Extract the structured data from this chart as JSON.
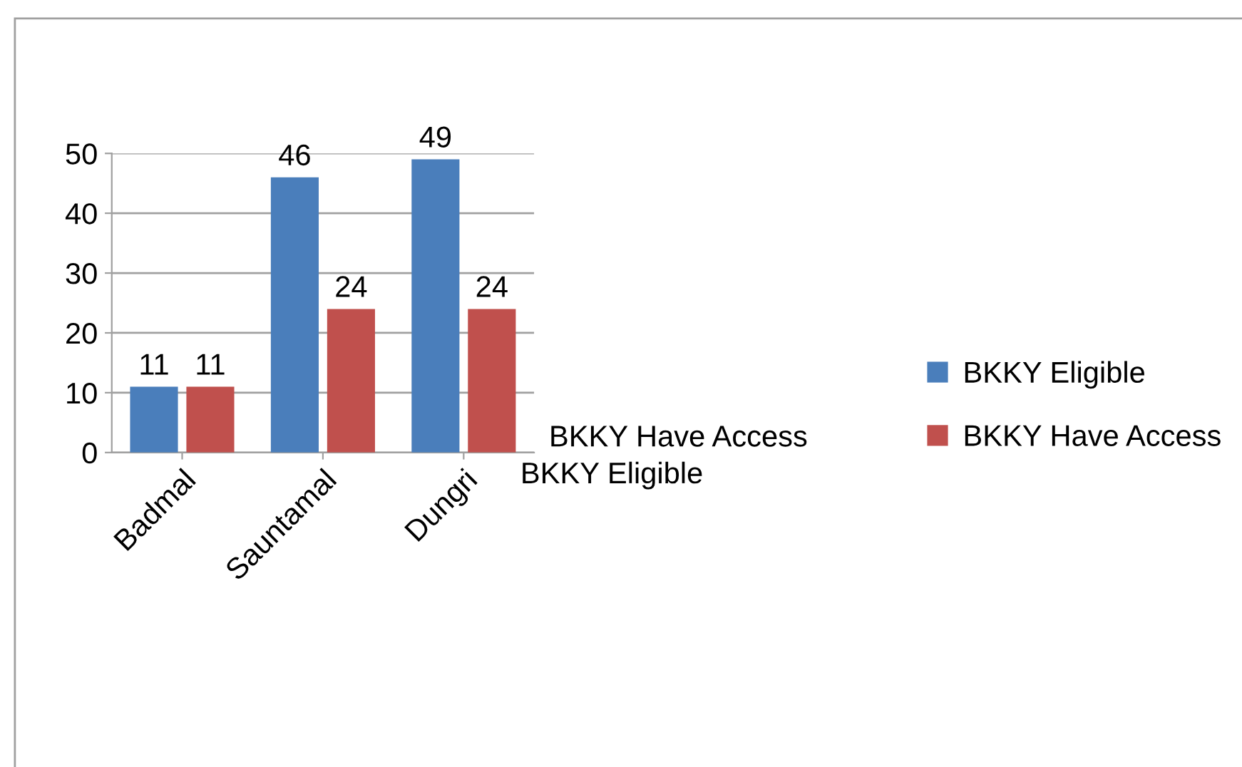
{
  "chart_data": {
    "type": "bar",
    "categories": [
      "Badmal",
      "Sauntamal",
      "Dungri"
    ],
    "series": [
      {
        "name": "BKKY Eligible",
        "color": "#4a7ebb",
        "values": [
          11,
          46,
          49
        ]
      },
      {
        "name": "BKKY Have Access",
        "color": "#c0504d",
        "values": [
          11,
          24,
          24
        ]
      }
    ],
    "ylim": [
      0,
      50
    ],
    "yticks": [
      0,
      10,
      20,
      30,
      40,
      50
    ],
    "grid": "y",
    "legend": "right",
    "data_labels": true
  }
}
